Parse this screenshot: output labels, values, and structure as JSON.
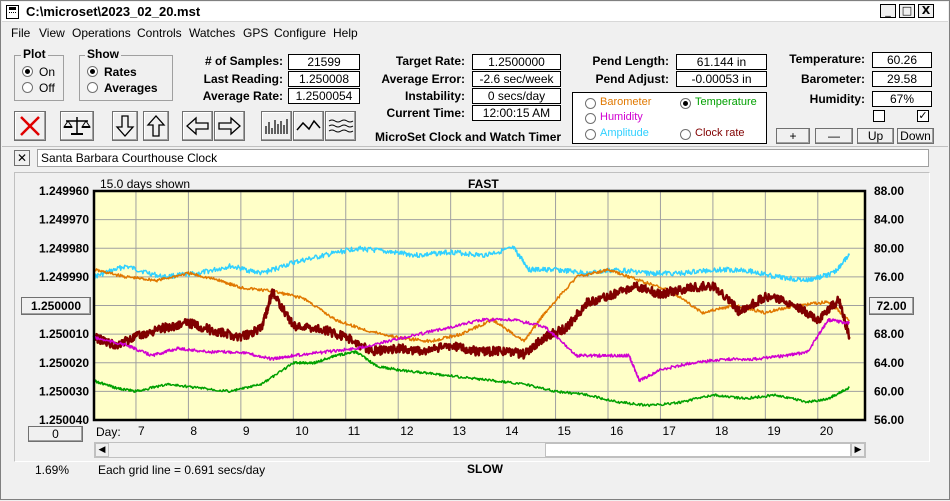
{
  "window": {
    "title": "C:\\microset\\2023_02_20.mst"
  },
  "titlebar_buttons": {
    "minimize": "_",
    "maximize": "□",
    "close": "X"
  },
  "menu": [
    "File",
    "View",
    "Operations",
    "Controls",
    "Watches",
    "GPS",
    "Configure",
    "Help"
  ],
  "plot_group": {
    "title": "Plot",
    "on": "On",
    "off": "Off",
    "selected": "On"
  },
  "show_group": {
    "title": "Show",
    "rates": "Rates",
    "averages": "Averages",
    "selected": "Rates"
  },
  "stats": [
    {
      "label": "# of Samples:",
      "value": "21599"
    },
    {
      "label": "Last Reading:",
      "value": "1.250008"
    },
    {
      "label": "Average Rate:",
      "value": "1.2500054"
    }
  ],
  "rates": [
    {
      "label": "Target Rate:",
      "value": "1.2500000"
    },
    {
      "label": "Average Error:",
      "value": "-2.6 sec/week"
    },
    {
      "label": "Instability:",
      "value": "0 secs/day"
    },
    {
      "label": "Current Time:",
      "value": "12:00:15 AM"
    }
  ],
  "app_caption": "MicroSet Clock and Watch Timer",
  "pendulum": [
    {
      "label": "Pend Length:",
      "value": "61.144 in"
    },
    {
      "label": "Pend Adjust:",
      "value": "-0.00053 in"
    }
  ],
  "plot_select": {
    "options": [
      {
        "label": "Barometer",
        "color": "#e07800"
      },
      {
        "label": "Temperature",
        "color": "#00a000"
      },
      {
        "label": "Humidity",
        "color": "#d000d0"
      },
      {
        "label": "Clock rate",
        "color": "#800000"
      },
      {
        "label": "Amplitude",
        "color": "#30d0ff"
      }
    ],
    "selected": "Temperature"
  },
  "environment": [
    {
      "label": "Temperature:",
      "value": "60.26"
    },
    {
      "label": "Barometer:",
      "value": "29.58"
    },
    {
      "label": "Humidity:",
      "value": "67%"
    }
  ],
  "env_checkboxes": [
    false,
    true
  ],
  "env_buttons": [
    "+",
    "—",
    "Up",
    "Down"
  ],
  "clock_name": "Santa Barbara Courthouse Clock",
  "clear_button": "✕",
  "chart": {
    "header_left": "15.0 days shown",
    "top_label": "FAST",
    "bottom_label": "SLOW",
    "footer_left": "Each grid line = 0.691 secs/day",
    "corner_button": "0",
    "corner_percent": "1.69%",
    "day_label": "Day:",
    "center_left_button": "1.250000",
    "center_right_button": "72.00"
  },
  "chart_data": {
    "type": "line",
    "x_label": "Day:",
    "x_ticks": [
      7,
      8,
      9,
      10,
      11,
      12,
      13,
      14,
      15,
      16,
      17,
      18,
      19,
      20
    ],
    "xlim": [
      6.2,
      20.9
    ],
    "left_axis": {
      "ticks": [
        "1.249960",
        "1.249970",
        "1.249980",
        "1.249990",
        "1.250000",
        "1.250010",
        "1.250020",
        "1.250030",
        "1.250040"
      ],
      "ylim": [
        1.24996,
        1.25004
      ],
      "reversed": true
    },
    "right_axis": {
      "ticks": [
        "88.00",
        "84.00",
        "80.00",
        "76.00",
        "72.00",
        "68.00",
        "64.00",
        "60.00",
        "56.00"
      ],
      "ylim": [
        56,
        88
      ]
    },
    "grid": true,
    "background": "#ffffc8",
    "series": [
      {
        "name": "Amplitude",
        "color": "#30d0ff",
        "axis": "right",
        "x": [
          6.2,
          6.8,
          7.5,
          8.2,
          8.8,
          9.4,
          10.0,
          10.6,
          11.2,
          11.8,
          12.4,
          13.0,
          13.6,
          14.2,
          14.5,
          15.0,
          15.6,
          16.2,
          16.8,
          17.4,
          18.0,
          18.6,
          19.2,
          19.8,
          20.3,
          20.6
        ],
        "y": [
          76,
          77.5,
          76,
          76.5,
          77.5,
          76.5,
          78,
          79,
          80,
          79.5,
          79,
          79.5,
          79,
          80,
          77,
          77,
          76.5,
          77,
          76.5,
          76.5,
          77,
          77,
          76,
          75.5,
          76.5,
          79
        ]
      },
      {
        "name": "Barometer",
        "color": "#e07800",
        "axis": "right",
        "x": [
          6.2,
          6.8,
          7.4,
          8.0,
          8.6,
          9.0,
          9.6,
          10.2,
          10.8,
          11.4,
          12.0,
          12.6,
          13.2,
          13.8,
          14.4,
          14.8,
          15.4,
          16.0,
          16.6,
          17.2,
          17.8,
          18.4,
          19.0,
          19.6,
          20.2,
          20.6
        ],
        "y": [
          77,
          76,
          75.5,
          76.5,
          75.5,
          74.5,
          74,
          73,
          70,
          68.5,
          67.5,
          67,
          68,
          70,
          67,
          71,
          76,
          77,
          75.5,
          74,
          71,
          72,
          71,
          72,
          72.5,
          70
        ]
      },
      {
        "name": "Clock rate",
        "color": "#800000",
        "axis": "left",
        "x": [
          6.2,
          6.6,
          7.0,
          7.5,
          8.0,
          8.5,
          9.0,
          9.4,
          9.6,
          10.0,
          10.5,
          11.0,
          11.5,
          12.0,
          12.5,
          13.0,
          13.5,
          14.0,
          14.4,
          14.8,
          15.2,
          15.6,
          16.0,
          16.5,
          17.0,
          17.5,
          18.0,
          18.5,
          19.0,
          19.5,
          20.0,
          20.4,
          20.6
        ],
        "y": [
          1.250011,
          1.250014,
          1.250011,
          1.250008,
          1.250006,
          1.250009,
          1.250011,
          1.250008,
          1.249995,
          1.250007,
          1.250008,
          1.250011,
          1.250016,
          1.250015,
          1.250016,
          1.250014,
          1.250016,
          1.250016,
          1.250017,
          1.250011,
          1.250008,
          1.249999,
          1.249997,
          1.249993,
          1.249996,
          1.249994,
          1.249993,
          1.250002,
          1.249997,
          1.249999,
          1.250005,
          1.249998,
          1.250011
        ]
      },
      {
        "name": "Humidity",
        "color": "#d000d0",
        "axis": "right",
        "x": [
          6.2,
          6.8,
          7.3,
          7.8,
          8.4,
          9.0,
          9.6,
          10.0,
          10.6,
          11.2,
          11.8,
          12.4,
          13.0,
          13.6,
          14.2,
          14.8,
          15.4,
          15.9,
          16.4,
          16.6,
          17.0,
          17.6,
          18.2,
          18.8,
          19.4,
          19.8,
          20.2,
          20.6
        ],
        "y": [
          67.5,
          66.5,
          65,
          66,
          65.5,
          65.5,
          64.5,
          65,
          65.5,
          66,
          67,
          68,
          69,
          70,
          70,
          69,
          65,
          65,
          65,
          61.5,
          63,
          64,
          64.5,
          64.5,
          65,
          65.5,
          70,
          69.5
        ]
      },
      {
        "name": "Temperature",
        "color": "#00a000",
        "axis": "right",
        "x": [
          6.2,
          6.6,
          7.0,
          7.6,
          8.2,
          8.8,
          9.4,
          10.0,
          10.4,
          10.8,
          11.2,
          11.6,
          12.0,
          12.6,
          13.2,
          13.8,
          14.4,
          15.0,
          15.6,
          16.2,
          16.8,
          17.4,
          18.0,
          18.6,
          19.2,
          19.8,
          20.2,
          20.6
        ],
        "y": [
          61.5,
          60.5,
          60,
          61,
          60.5,
          60,
          61,
          64,
          64,
          65,
          65.5,
          63.5,
          63,
          62.5,
          62,
          61.5,
          61,
          60,
          59.5,
          58.5,
          58,
          58.5,
          59.5,
          59,
          59.5,
          58.5,
          59,
          60.5
        ]
      }
    ]
  },
  "colors": {
    "chart_bg": "#ffffc8",
    "grid": "#a0a0a0",
    "x_red": "#e00000"
  }
}
